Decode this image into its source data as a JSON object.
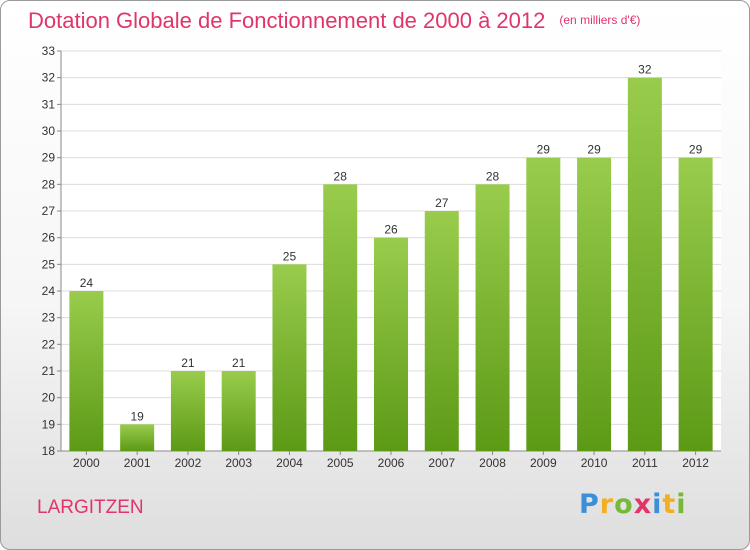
{
  "chart_data": {
    "type": "bar",
    "title": "Dotation Globale de Fonctionnement de 2000 à 2012",
    "subtitle": "(en milliers d'€)",
    "categories": [
      "2000",
      "2001",
      "2002",
      "2003",
      "2004",
      "2005",
      "2006",
      "2007",
      "2008",
      "2009",
      "2010",
      "2011",
      "2012"
    ],
    "values": [
      24,
      19,
      21,
      21,
      25,
      28,
      26,
      27,
      28,
      29,
      29,
      32,
      29
    ],
    "ylim": [
      18,
      33
    ],
    "yticks": [
      18,
      19,
      20,
      21,
      22,
      23,
      24,
      25,
      26,
      27,
      28,
      29,
      30,
      31,
      32,
      33
    ],
    "grid": true,
    "bar_color_top": "#99cc4c",
    "bar_color_bottom": "#5c9a16",
    "xlabel": "",
    "ylabel": ""
  },
  "place_name": "LARGITZEN",
  "logo": {
    "letters": [
      "P",
      "r",
      "o",
      "x",
      "i",
      "t",
      "i"
    ],
    "colors": [
      "#3a8fd8",
      "#f2b01e",
      "#76b83a",
      "#e0356a",
      "#3a8fd8",
      "#f2b01e",
      "#76b83a"
    ]
  },
  "accent_color": "#e0356a"
}
